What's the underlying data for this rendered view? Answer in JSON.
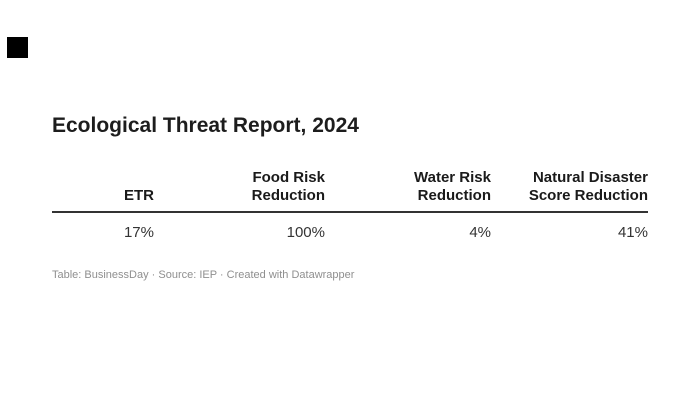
{
  "title": "Ecological Threat Report, 2024",
  "table": {
    "columns": [
      "ETR",
      "Food Risk\nReduction",
      "Water Risk\nReduction",
      "Natural Disaster\nScore Reduction"
    ],
    "values": [
      "17%",
      "100%",
      "4%",
      "41%"
    ]
  },
  "footer": "Table: BusinessDay · Source: IEP · Created with Datawrapper",
  "colors": {
    "title_text": "#1d1d1d",
    "header_text": "#1a1a1a",
    "value_text": "#333333",
    "rule": "#333333",
    "footer_text": "#8f8f8f",
    "logo_mark": "#000000",
    "background": "#ffffff"
  },
  "chart_data": {
    "type": "table",
    "title": "Ecological Threat Report, 2024",
    "columns": [
      "ETR",
      "Food Risk Reduction",
      "Water Risk Reduction",
      "Natural Disaster Score Reduction"
    ],
    "rows": [
      [
        "17%",
        "100%",
        "4%",
        "41%"
      ]
    ],
    "values_numeric_percent": [
      17,
      100,
      4,
      41
    ],
    "credit": "Table: BusinessDay",
    "source": "IEP",
    "tool": "Created with Datawrapper",
    "layout_hints": {
      "column_alignment": "right",
      "header_rule": true,
      "gridlines": false
    }
  }
}
